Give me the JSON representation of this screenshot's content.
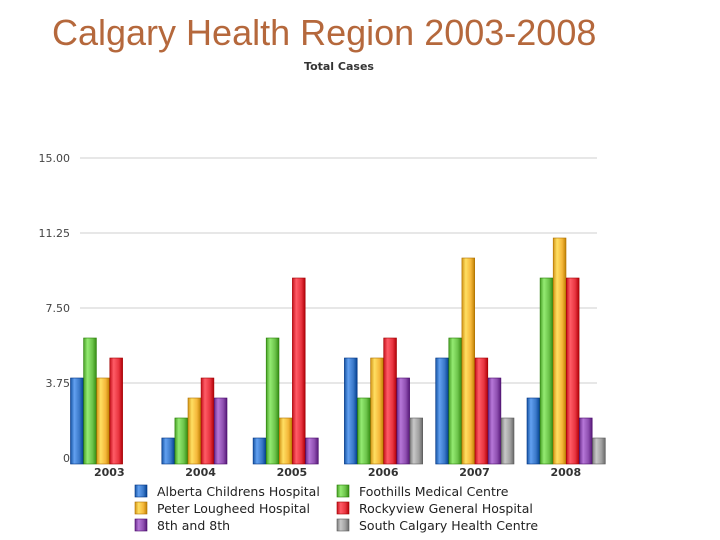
{
  "slide": {
    "title": "Calgary Health Region 2003-2008"
  },
  "chart_data": {
    "type": "bar",
    "title": "Total Cases",
    "xlabel": "",
    "ylabel": "",
    "ylim": [
      0,
      15
    ],
    "yticks": [
      "0",
      "3.75",
      "7.50",
      "11.25",
      "15.00"
    ],
    "grid": true,
    "legend_position": "bottom",
    "categories": [
      "2003",
      "2004",
      "2005",
      "2006",
      "2007",
      "2008"
    ],
    "series": [
      {
        "name": "Alberta Childrens Hospital",
        "color": "#3a78c8",
        "values": [
          4,
          1,
          1,
          5,
          5,
          3
        ]
      },
      {
        "name": "Foothills Medical Centre",
        "color": "#6cc34a",
        "values": [
          6,
          2,
          6,
          3,
          6,
          9
        ]
      },
      {
        "name": "Peter Lougheed Hospital",
        "color": "#f5b73a",
        "values": [
          4,
          3,
          2,
          5,
          10,
          11
        ]
      },
      {
        "name": "Rockyview General Hospital",
        "color": "#e8343f",
        "values": [
          5,
          4,
          9,
          6,
          5,
          9
        ]
      },
      {
        "name": "8th and 8th",
        "color": "#8e4fb0",
        "values": [
          0,
          3,
          1,
          4,
          4,
          2
        ]
      },
      {
        "name": "South Calgary Health Centre",
        "color": "#a0a0a0",
        "values": [
          0,
          0,
          0,
          2,
          2,
          1
        ]
      }
    ]
  }
}
